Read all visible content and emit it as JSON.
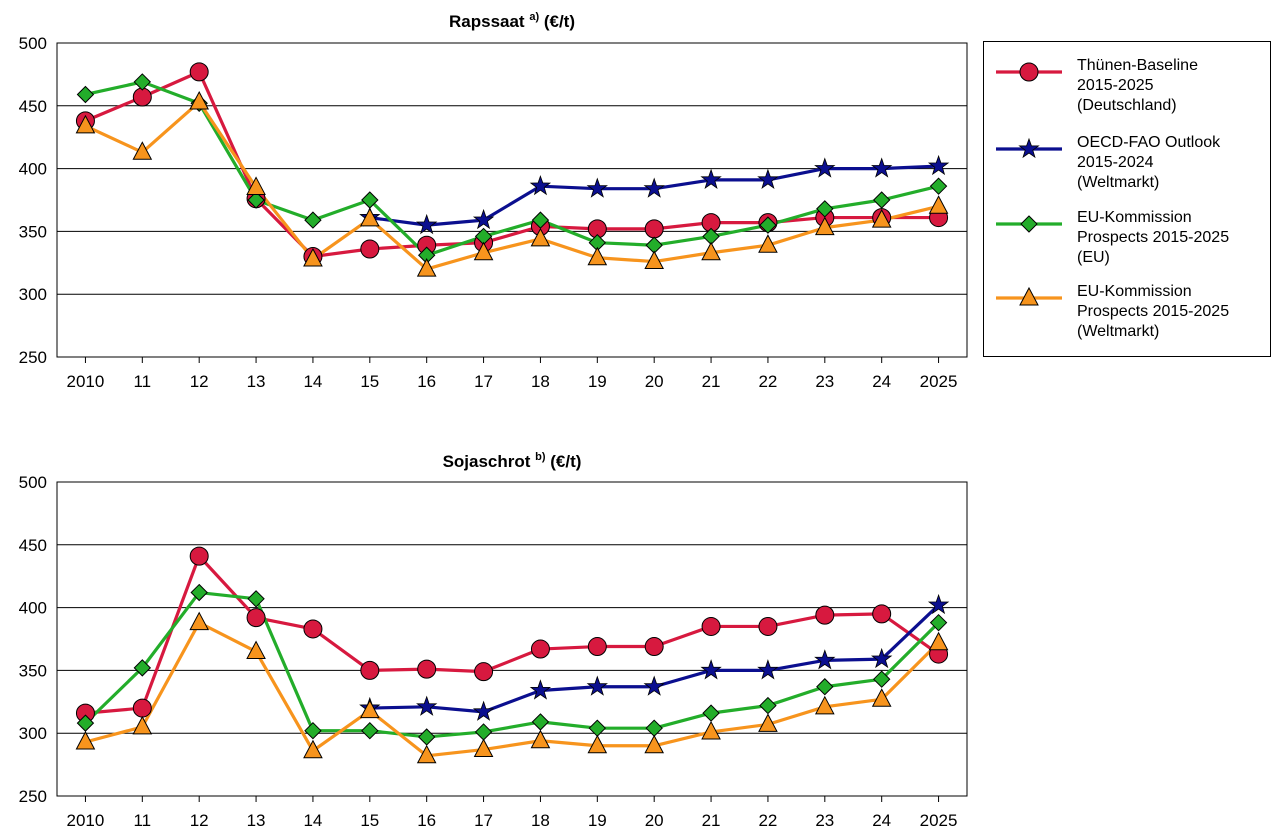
{
  "chart_data": [
    {
      "type": "line",
      "title_main": "Rapssaat",
      "title_sup": "a)",
      "title_unit": "(€/t)",
      "x": [
        "2010",
        "11",
        "12",
        "13",
        "14",
        "15",
        "16",
        "17",
        "18",
        "19",
        "20",
        "21",
        "22",
        "23",
        "24",
        "2025"
      ],
      "ylim": [
        250,
        500
      ],
      "yticks": [
        250,
        300,
        350,
        400,
        450,
        500
      ],
      "series": [
        {
          "name": "Thünen-Baseline 2015-2025 (Deutschland)",
          "color": "#d7193f",
          "marker": "circle",
          "values": [
            438,
            457,
            477,
            376,
            330,
            336,
            339,
            341,
            354,
            352,
            352,
            357,
            357,
            361,
            361,
            361
          ]
        },
        {
          "name": "OECD-FAO Outlook 2015-2024 (Weltmarkt)",
          "color": "#0b0f8f",
          "marker": "star",
          "values": [
            null,
            null,
            null,
            null,
            null,
            361,
            355,
            359,
            386,
            384,
            384,
            391,
            391,
            400,
            400,
            402
          ]
        },
        {
          "name": "EU-Kommission Prospects 2015-2025 (EU)",
          "color": "#23ad2a",
          "marker": "diamond",
          "values": [
            459,
            469,
            452,
            375,
            359,
            375,
            331,
            346,
            359,
            341,
            339,
            346,
            355,
            368,
            375,
            386
          ]
        },
        {
          "name": "EU-Kommission Prospects 2015-2025 (Weltmarkt)",
          "color": "#f7941d",
          "marker": "triangle",
          "values": [
            434,
            413,
            453,
            385,
            328,
            360,
            320,
            333,
            344,
            329,
            326,
            333,
            339,
            353,
            359,
            370
          ]
        }
      ]
    },
    {
      "type": "line",
      "title_main": "Sojaschrot",
      "title_sup": "b)",
      "title_unit": "(€/t)",
      "x": [
        "2010",
        "11",
        "12",
        "13",
        "14",
        "15",
        "16",
        "17",
        "18",
        "19",
        "20",
        "21",
        "22",
        "23",
        "24",
        "2025"
      ],
      "ylim": [
        250,
        500
      ],
      "yticks": [
        250,
        300,
        350,
        400,
        450,
        500
      ],
      "series": [
        {
          "name": "Thünen-Baseline 2015-2025 (Deutschland)",
          "color": "#d7193f",
          "marker": "circle",
          "values": [
            316,
            320,
            441,
            392,
            383,
            350,
            351,
            349,
            367,
            369,
            369,
            385,
            385,
            394,
            395,
            363
          ]
        },
        {
          "name": "OECD-FAO Outlook 2015-2024 (Weltmarkt)",
          "color": "#0b0f8f",
          "marker": "star",
          "values": [
            null,
            null,
            null,
            null,
            null,
            320,
            321,
            317,
            334,
            337,
            337,
            350,
            350,
            358,
            359,
            402
          ]
        },
        {
          "name": "EU-Kommission Prospects 2015-2025 (EU)",
          "color": "#23ad2a",
          "marker": "diamond",
          "values": [
            308,
            352,
            412,
            407,
            302,
            302,
            297,
            301,
            309,
            304,
            304,
            316,
            322,
            337,
            343,
            388
          ]
        },
        {
          "name": "EU-Kommission Prospects 2015-2025 (Weltmarkt)",
          "color": "#f7941d",
          "marker": "triangle",
          "values": [
            293,
            305,
            388,
            365,
            286,
            318,
            282,
            287,
            294,
            290,
            290,
            301,
            307,
            321,
            327,
            372
          ]
        }
      ]
    }
  ],
  "legend": {
    "position": "right",
    "entries": [
      {
        "label": "Thünen-Baseline\n2015-2025\n(Deutschland)",
        "color": "#d7193f",
        "marker": "circle"
      },
      {
        "label": "OECD-FAO Outlook\n2015-2024\n(Weltmarkt)",
        "color": "#0b0f8f",
        "marker": "star"
      },
      {
        "label": "EU-Kommission\nProspects 2015-2025\n(EU)",
        "color": "#23ad2a",
        "marker": "diamond"
      },
      {
        "label": "EU-Kommission\nProspects 2015-2025\n(Weltmarkt)",
        "color": "#f7941d",
        "marker": "triangle"
      }
    ]
  }
}
